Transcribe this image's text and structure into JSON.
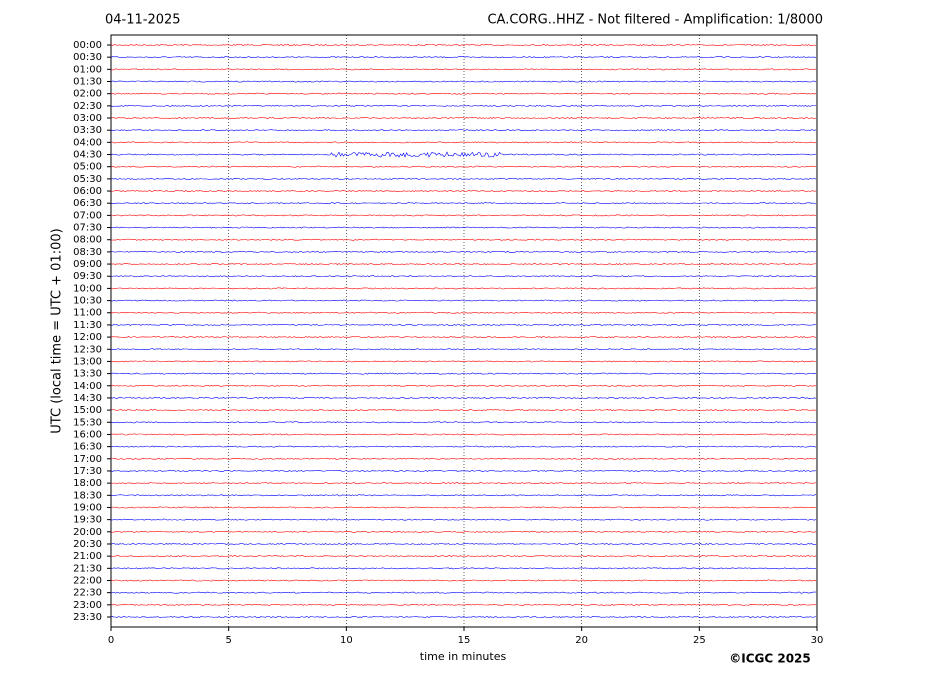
{
  "chart_data": {
    "type": "helicorder",
    "date": "04-11-2025",
    "title": "CA.CORG..HHZ - Not filtered - Amplification: 1/8000",
    "y_label": "UTC (local time = UTC + 01:00)",
    "x_label": "time in minutes",
    "credit": "©ICGC 2025",
    "categories": [
      "00:00",
      "00:30",
      "01:00",
      "01:30",
      "02:00",
      "02:30",
      "03:00",
      "03:30",
      "04:00",
      "04:30",
      "05:00",
      "05:30",
      "06:00",
      "06:30",
      "07:00",
      "07:30",
      "08:00",
      "08:30",
      "09:00",
      "09:30",
      "10:00",
      "10:30",
      "11:00",
      "11:30",
      "12:00",
      "12:30",
      "13:00",
      "13:30",
      "14:00",
      "14:30",
      "15:00",
      "15:30",
      "16:00",
      "16:30",
      "17:00",
      "17:30",
      "18:00",
      "18:30",
      "19:00",
      "19:30",
      "20:00",
      "20:30",
      "21:00",
      "21:30",
      "22:00",
      "22:30",
      "23:00",
      "23:30"
    ],
    "trace_colors": [
      "#ff0000",
      "#0000ff"
    ],
    "xlim": [
      0,
      30
    ],
    "xticks": [
      0,
      5,
      10,
      15,
      20,
      25,
      30
    ],
    "grid": true
  }
}
